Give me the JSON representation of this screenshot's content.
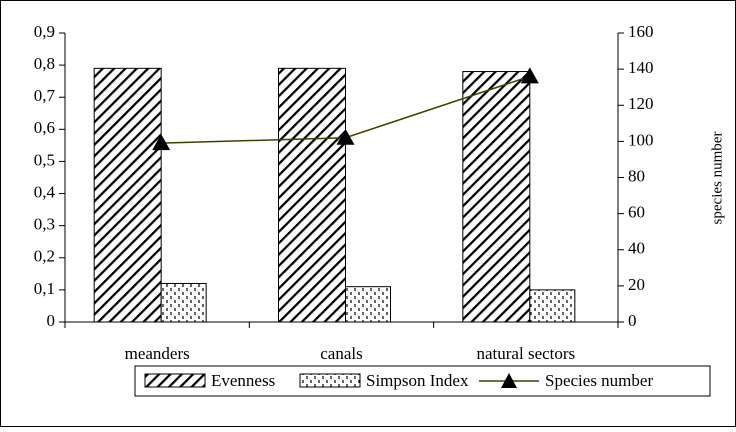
{
  "chart_data": {
    "type": "bar",
    "categories": [
      "meanders",
      "canals",
      "natural sectors"
    ],
    "series": [
      {
        "name": "Evenness",
        "color": "#000000",
        "values": [
          0.79,
          0.79,
          0.78
        ]
      },
      {
        "name": "Simpson Index",
        "color": "#000000",
        "values": [
          0.12,
          0.11,
          0.1
        ]
      },
      {
        "name": "Species number",
        "color": "#404000",
        "type": "line",
        "axis": "y2",
        "values": [
          99,
          102,
          136
        ]
      }
    ],
    "ylim": [
      0,
      0.9
    ],
    "yticks": [
      0,
      {
        "value": 0.1,
        "label": "0,1"
      },
      {
        "value": 0.2,
        "label": "0,2"
      },
      {
        "value": 0.3,
        "label": "0,3"
      },
      {
        "value": 0.4,
        "label": "0,4"
      },
      {
        "value": 0.5,
        "label": "0,5"
      },
      {
        "value": 0.6,
        "label": "0,6"
      },
      {
        "value": 0.7,
        "label": "0,7"
      },
      {
        "value": 0.8,
        "label": "0,8"
      },
      {
        "value": 0.9,
        "label": "0,9"
      }
    ],
    "y2lim": [
      0,
      160
    ],
    "y2ticks": [
      0,
      20,
      40,
      60,
      80,
      100,
      120,
      140,
      160
    ],
    "y2label": "species number",
    "legend": "bottom"
  }
}
